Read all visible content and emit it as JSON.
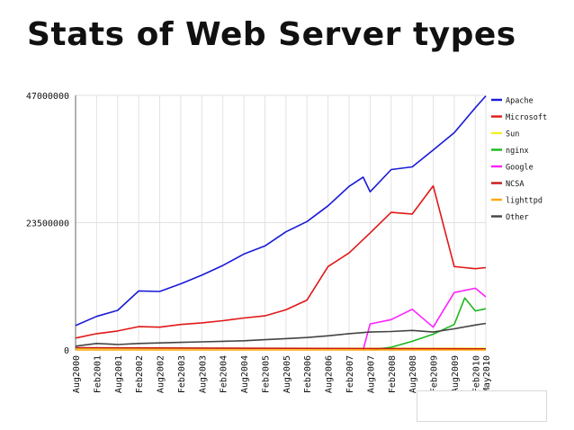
{
  "slide": {
    "title": "Stats of Web Server types"
  },
  "chart_data": {
    "type": "line",
    "title": "",
    "xlabel": "",
    "ylabel": "",
    "ylim": [
      0,
      47000000
    ],
    "yticks": [
      {
        "value": 0,
        "label": "0"
      },
      {
        "value": 23500000,
        "label": "23500000"
      },
      {
        "value": 47000000,
        "label": "47000000"
      }
    ],
    "x_domain": [
      "2000-08",
      "2010-05"
    ],
    "xticks": [
      {
        "date": "2000-08",
        "label": "Aug2000"
      },
      {
        "date": "2001-02",
        "label": "Feb2001"
      },
      {
        "date": "2001-08",
        "label": "Aug2001"
      },
      {
        "date": "2002-02",
        "label": "Feb2002"
      },
      {
        "date": "2002-08",
        "label": "Aug2002"
      },
      {
        "date": "2003-02",
        "label": "Feb2003"
      },
      {
        "date": "2003-08",
        "label": "Aug2003"
      },
      {
        "date": "2004-02",
        "label": "Feb2004"
      },
      {
        "date": "2004-08",
        "label": "Aug2004"
      },
      {
        "date": "2005-02",
        "label": "Feb2005"
      },
      {
        "date": "2005-08",
        "label": "Aug2005"
      },
      {
        "date": "2006-02",
        "label": "Feb2006"
      },
      {
        "date": "2006-08",
        "label": "Aug2006"
      },
      {
        "date": "2007-02",
        "label": "Feb2007"
      },
      {
        "date": "2007-08",
        "label": "Aug2007"
      },
      {
        "date": "2008-02",
        "label": "Feb2008"
      },
      {
        "date": "2008-08",
        "label": "Aug2008"
      },
      {
        "date": "2009-02",
        "label": "Feb2009"
      },
      {
        "date": "2009-08",
        "label": "Aug2009"
      },
      {
        "date": "2010-02",
        "label": "Feb2010"
      },
      {
        "date": "2010-05",
        "label": "May2010"
      }
    ],
    "grid": true,
    "legend_position": "right",
    "series": [
      {
        "name": "Apache",
        "color": "#1a1ad8",
        "points": [
          [
            "2000-08",
            4500000
          ],
          [
            "2001-02",
            6200000
          ],
          [
            "2001-08",
            7300000
          ],
          [
            "2002-02",
            10900000
          ],
          [
            "2002-08",
            10800000
          ],
          [
            "2003-02",
            12200000
          ],
          [
            "2003-08",
            13800000
          ],
          [
            "2004-02",
            15600000
          ],
          [
            "2004-08",
            17700000
          ],
          [
            "2005-02",
            19200000
          ],
          [
            "2005-08",
            21800000
          ],
          [
            "2006-02",
            23700000
          ],
          [
            "2006-08",
            26600000
          ],
          [
            "2007-02",
            30200000
          ],
          [
            "2007-06",
            31900000
          ],
          [
            "2007-08",
            29200000
          ],
          [
            "2008-02",
            33300000
          ],
          [
            "2008-08",
            33800000
          ],
          [
            "2009-02",
            36900000
          ],
          [
            "2009-08",
            40100000
          ],
          [
            "2010-02",
            44700000
          ],
          [
            "2010-05",
            46900000
          ]
        ]
      },
      {
        "name": "Microsoft",
        "color": "#e01818",
        "points": [
          [
            "2000-08",
            2200000
          ],
          [
            "2001-02",
            3000000
          ],
          [
            "2001-08",
            3500000
          ],
          [
            "2002-02",
            4300000
          ],
          [
            "2002-08",
            4200000
          ],
          [
            "2003-02",
            4700000
          ],
          [
            "2003-08",
            5000000
          ],
          [
            "2004-02",
            5400000
          ],
          [
            "2004-08",
            5900000
          ],
          [
            "2005-02",
            6300000
          ],
          [
            "2005-08",
            7400000
          ],
          [
            "2006-02",
            9200000
          ],
          [
            "2006-08",
            15400000
          ],
          [
            "2007-02",
            17900000
          ],
          [
            "2007-08",
            21600000
          ],
          [
            "2008-02",
            25400000
          ],
          [
            "2008-08",
            25100000
          ],
          [
            "2009-02",
            30300000
          ],
          [
            "2009-08",
            15400000
          ],
          [
            "2010-02",
            15000000
          ],
          [
            "2010-05",
            15200000
          ]
        ]
      },
      {
        "name": "Sun",
        "color": "#f0f028",
        "points": [
          [
            "2000-08",
            300000
          ],
          [
            "2010-05",
            300000
          ]
        ]
      },
      {
        "name": "nginx",
        "color": "#1cb81c",
        "points": [
          [
            "2007-08",
            0
          ],
          [
            "2008-02",
            500000
          ],
          [
            "2008-08",
            1600000
          ],
          [
            "2009-02",
            2900000
          ],
          [
            "2009-08",
            4700000
          ],
          [
            "2009-11",
            9600000
          ],
          [
            "2010-02",
            7200000
          ],
          [
            "2010-05",
            7600000
          ]
        ]
      },
      {
        "name": "Google",
        "color": "#ff20ff",
        "points": [
          [
            "2007-06",
            0
          ],
          [
            "2007-08",
            4800000
          ],
          [
            "2008-02",
            5600000
          ],
          [
            "2008-08",
            7500000
          ],
          [
            "2009-02",
            4200000
          ],
          [
            "2009-08",
            10600000
          ],
          [
            "2010-02",
            11400000
          ],
          [
            "2010-05",
            9800000
          ]
        ]
      },
      {
        "name": "NCSA",
        "color": "#c81818",
        "points": [
          [
            "2000-08",
            400000
          ],
          [
            "2010-05",
            200000
          ]
        ]
      },
      {
        "name": "lighttpd",
        "color": "#ffa800",
        "points": [
          [
            "2000-08",
            0
          ],
          [
            "2010-05",
            0
          ]
        ]
      },
      {
        "name": "Other",
        "color": "#444444",
        "points": [
          [
            "2000-08",
            700000
          ],
          [
            "2001-02",
            1200000
          ],
          [
            "2001-08",
            1000000
          ],
          [
            "2002-02",
            1200000
          ],
          [
            "2002-08",
            1300000
          ],
          [
            "2003-02",
            1400000
          ],
          [
            "2003-08",
            1500000
          ],
          [
            "2004-02",
            1600000
          ],
          [
            "2004-08",
            1700000
          ],
          [
            "2005-02",
            1900000
          ],
          [
            "2005-08",
            2100000
          ],
          [
            "2006-02",
            2300000
          ],
          [
            "2006-08",
            2600000
          ],
          [
            "2007-02",
            3000000
          ],
          [
            "2007-08",
            3300000
          ],
          [
            "2008-02",
            3400000
          ],
          [
            "2008-08",
            3600000
          ],
          [
            "2009-02",
            3300000
          ],
          [
            "2009-08",
            3900000
          ],
          [
            "2010-02",
            4600000
          ],
          [
            "2010-05",
            4900000
          ]
        ]
      }
    ]
  }
}
